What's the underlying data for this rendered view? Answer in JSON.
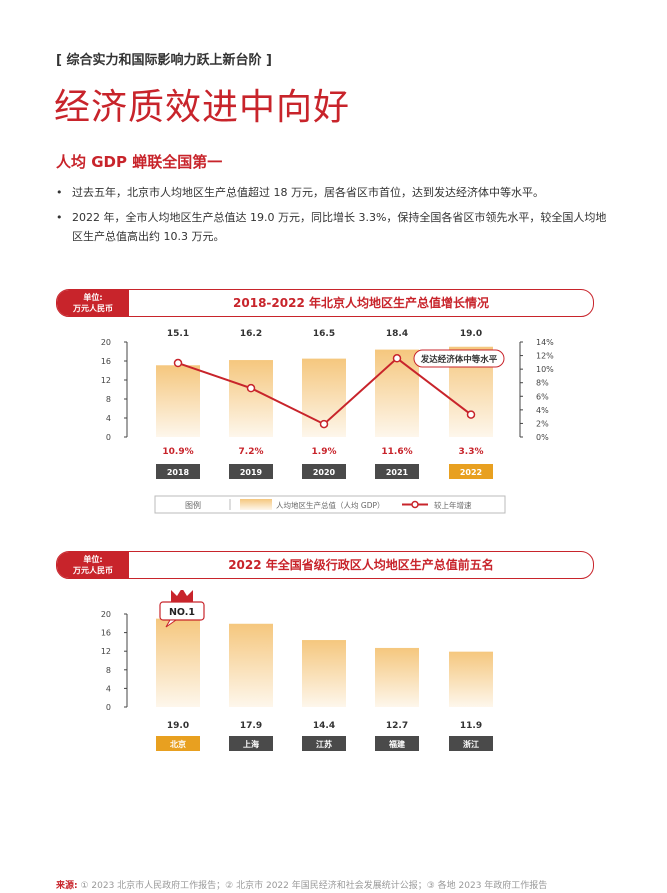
{
  "header": {
    "section_tag": "[ 综合实力和国际影响力跃上新台阶 ]",
    "title": "经济质效进中向好",
    "subtitle": "人均 GDP 蝉联全国第一"
  },
  "bullets": [
    "过去五年，北京市人均地区生产总值超过 18 万元，居各省区市首位，达到发达经济体中等水平。",
    "2022 年，全市人均地区生产总值达 19.0 万元，同比增长 3.3%，保持全国各省区市领先水平，较全国人均地区生产总值高出约 10.3 万元。"
  ],
  "colors": {
    "accent": "#c8242b",
    "bar": "#f5c77e",
    "gold": "#e8a020",
    "dark_label": "#4a4a4a"
  },
  "chart_data": [
    {
      "type": "bar",
      "unit_line1": "单位:",
      "unit_line2": "万元人民币",
      "title": "2018-2022 年北京人均地区生产总值增长情况",
      "categories": [
        "2018",
        "2019",
        "2020",
        "2021",
        "2022"
      ],
      "highlight_category": "2022",
      "ylim": [
        0,
        20
      ],
      "yticks": [
        0,
        4,
        8,
        12,
        16,
        20
      ],
      "y2lim": [
        0,
        14
      ],
      "y2ticks": [
        "0%",
        "2%",
        "4%",
        "6%",
        "8%",
        "10%",
        "12%",
        "14%"
      ],
      "series": [
        {
          "name": "人均地区生产总值（人均 GDP）",
          "type": "bar",
          "values": [
            15.1,
            16.2,
            16.5,
            18.4,
            19.0
          ],
          "labels": [
            "15.1",
            "16.2",
            "16.5",
            "18.4",
            "19.0"
          ]
        },
        {
          "name": "较上年增速",
          "type": "line",
          "axis": "right",
          "values": [
            10.9,
            7.2,
            1.9,
            11.6,
            3.3
          ],
          "labels": [
            "10.9%",
            "7.2%",
            "1.9%",
            "11.6%",
            "3.3%"
          ]
        }
      ],
      "legend_title": "图例",
      "annotation": "发达经济体中等水平"
    },
    {
      "type": "bar",
      "unit_line1": "单位:",
      "unit_line2": "万元人民币",
      "title": "2022 年全国省级行政区人均地区生产总值前五名",
      "categories": [
        "北京",
        "上海",
        "江苏",
        "福建",
        "浙江"
      ],
      "highlight_category": "北京",
      "ylim": [
        0,
        20
      ],
      "yticks": [
        0,
        4,
        8,
        12,
        16,
        20
      ],
      "values": [
        19.0,
        17.9,
        14.4,
        12.7,
        11.9
      ],
      "labels": [
        "19.0",
        "17.9",
        "14.4",
        "12.7",
        "11.9"
      ],
      "badge": "NO.1"
    }
  ],
  "source": {
    "label": "来源:",
    "text": "① 2023 北京市人民政府工作报告；② 北京市 2022 年国民经济和社会发展统计公报；③ 各地 2023 年政府工作报告"
  }
}
